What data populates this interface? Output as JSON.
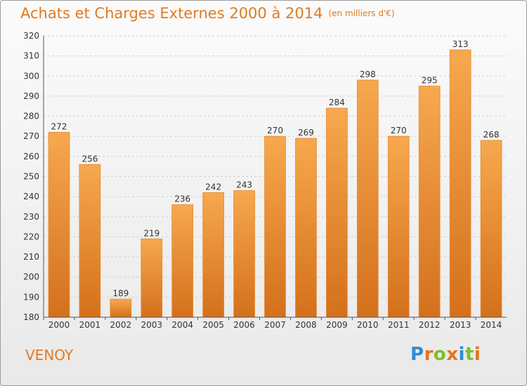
{
  "header": {
    "title": "Achats et Charges Externes 2000 à 2014",
    "unit": "(en milliers d'€)"
  },
  "footer": {
    "town": "VENOY",
    "logo_letters": [
      "P",
      "r",
      "o",
      "x",
      "i",
      "t",
      "i"
    ],
    "logo_colors": [
      "#2a8fd6",
      "#e8731c",
      "#7bbf2a",
      "#e8731c",
      "#2a8fd6",
      "#7bbf2a",
      "#e8731c"
    ]
  },
  "colors": {
    "bar_top": "#f7a84e",
    "bar_bottom": "#d4701c",
    "bar_edge": "#e58a2e",
    "title": "#e07a22"
  },
  "chart_data": {
    "type": "bar",
    "title": "Achats et Charges Externes 2000 à 2014",
    "subtitle": "(en milliers d'€)",
    "categories": [
      "2000",
      "2001",
      "2002",
      "2003",
      "2004",
      "2005",
      "2006",
      "2007",
      "2008",
      "2009",
      "2010",
      "2011",
      "2012",
      "2013",
      "2014"
    ],
    "values": [
      272,
      256,
      189,
      219,
      236,
      242,
      243,
      270,
      269,
      284,
      298,
      270,
      295,
      313,
      268
    ],
    "ylim": [
      180,
      320
    ],
    "yticks": [
      180,
      190,
      200,
      210,
      220,
      230,
      240,
      250,
      260,
      270,
      280,
      290,
      300,
      310,
      320
    ],
    "grid": true,
    "xlabel": "",
    "ylabel": ""
  }
}
